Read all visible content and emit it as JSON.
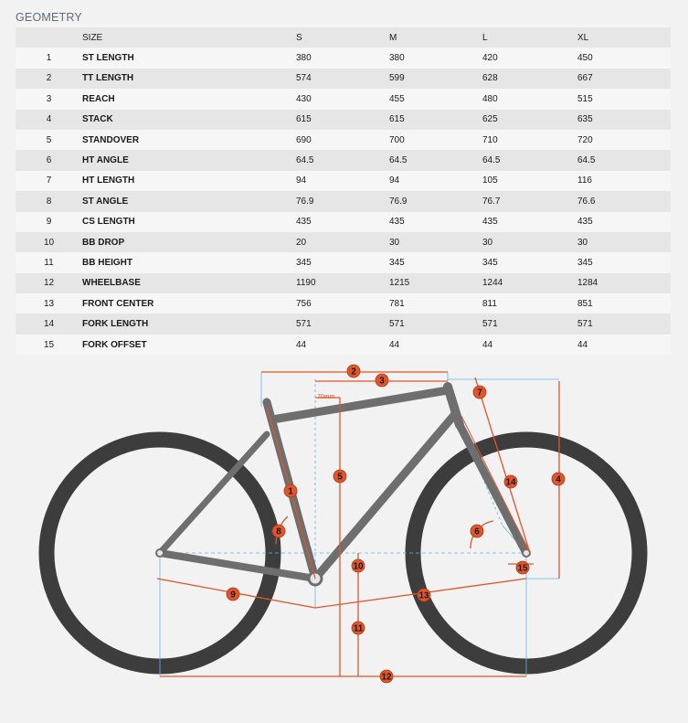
{
  "heading": "GEOMETRY",
  "table": {
    "headers": {
      "num": "",
      "name": "SIZE",
      "s": "S",
      "m": "M",
      "l": "L",
      "xl": "XL"
    },
    "rows": [
      {
        "num": "1",
        "name": "ST LENGTH",
        "s": "380",
        "m": "380",
        "l": "420",
        "xl": "450"
      },
      {
        "num": "2",
        "name": "TT LENGTH",
        "s": "574",
        "m": "599",
        "l": "628",
        "xl": "667"
      },
      {
        "num": "3",
        "name": "REACH",
        "s": "430",
        "m": "455",
        "l": "480",
        "xl": "515"
      },
      {
        "num": "4",
        "name": "STACK",
        "s": "615",
        "m": "615",
        "l": "625",
        "xl": "635"
      },
      {
        "num": "5",
        "name": "STANDOVER",
        "s": "690",
        "m": "700",
        "l": "710",
        "xl": "720"
      },
      {
        "num": "6",
        "name": "HT ANGLE",
        "s": "64.5",
        "m": "64.5",
        "l": "64.5",
        "xl": "64.5"
      },
      {
        "num": "7",
        "name": "HT LENGTH",
        "s": "94",
        "m": "94",
        "l": "105",
        "xl": "116"
      },
      {
        "num": "8",
        "name": "ST ANGLE",
        "s": "76.9",
        "m": "76.9",
        "l": "76.7",
        "xl": "76.6"
      },
      {
        "num": "9",
        "name": "CS LENGTH",
        "s": "435",
        "m": "435",
        "l": "435",
        "xl": "435"
      },
      {
        "num": "10",
        "name": "BB DROP",
        "s": "20",
        "m": "30",
        "l": "30",
        "xl": "30"
      },
      {
        "num": "11",
        "name": "BB HEIGHT",
        "s": "345",
        "m": "345",
        "l": "345",
        "xl": "345"
      },
      {
        "num": "12",
        "name": "WHEELBASE",
        "s": "1190",
        "m": "1215",
        "l": "1244",
        "xl": "1284"
      },
      {
        "num": "13",
        "name": "FRONT CENTER",
        "s": "756",
        "m": "781",
        "l": "811",
        "xl": "851"
      },
      {
        "num": "14",
        "name": "FORK LENGTH",
        "s": "571",
        "m": "571",
        "l": "571",
        "xl": "571"
      },
      {
        "num": "15",
        "name": "FORK OFFSET",
        "s": "44",
        "m": "44",
        "l": "44",
        "xl": "44"
      }
    ]
  },
  "diagram": {
    "offset_label": "70mm",
    "markers": [
      "1",
      "2",
      "3",
      "4",
      "5",
      "6",
      "7",
      "8",
      "9",
      "10",
      "11",
      "12",
      "13",
      "14",
      "15"
    ],
    "colors": {
      "frame": "#6e6e6e",
      "tire": "#3d3d3d",
      "dimension": "#e0552c",
      "guide": "#5fb7e0",
      "marker": "#e0552c"
    }
  }
}
